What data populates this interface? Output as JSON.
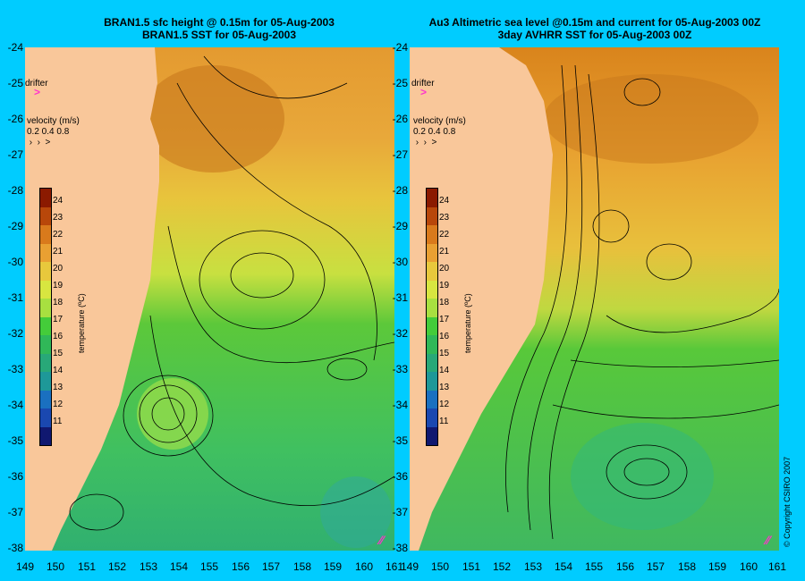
{
  "left_panel": {
    "title_line1": "BRAN1.5 sfc height @ 0.15m for 05-Aug-2003",
    "title_line2": "BRAN1.5 SST for 05-Aug-2003"
  },
  "right_panel": {
    "title_line1": "Au3 Altimetric sea level  @0.15m and current for 05-Aug-2003 00Z",
    "title_line2": "3day AVHRR SST for 05-Aug-2003 00Z"
  },
  "legend": {
    "drifter_label": "drifter",
    "velocity_label": "velocity (m/s)",
    "velocity_scale": "0.2 0.4 0.8",
    "colorbar_title": "temperature (ºC)",
    "colorbar_ticks": [
      "24",
      "23",
      "22",
      "21",
      "20",
      "19",
      "18",
      "17",
      "16",
      "15",
      "14",
      "13",
      "12",
      "11"
    ],
    "colorbar_colors": [
      "#8b1a00",
      "#b8470a",
      "#d97a1c",
      "#e9a032",
      "#e8c83c",
      "#d8e640",
      "#a8e040",
      "#44cc3a",
      "#30b858",
      "#28a878",
      "#1e9898",
      "#1a70c0",
      "#1a48b0",
      "#101870"
    ]
  },
  "axes": {
    "lat_ticks": [
      "-24",
      "-25",
      "-26",
      "-27",
      "-28",
      "-29",
      "-30",
      "-31",
      "-32",
      "-33",
      "-34",
      "-35",
      "-36",
      "-37",
      "-38"
    ],
    "lon_ticks_left": [
      "149",
      "150",
      "151",
      "152",
      "153",
      "154",
      "155",
      "156",
      "157",
      "158",
      "159",
      "160",
      "161"
    ],
    "lon_ticks_right": [
      "149",
      "150",
      "151",
      "152",
      "153",
      "154",
      "155",
      "156",
      "157",
      "158",
      "159",
      "160",
      "161"
    ]
  },
  "copyright": "© Copyright CSIRO 2007",
  "colors": {
    "background": "#00ccff",
    "land": "#f9c79a",
    "drifter_marker": "#ff33cc"
  }
}
